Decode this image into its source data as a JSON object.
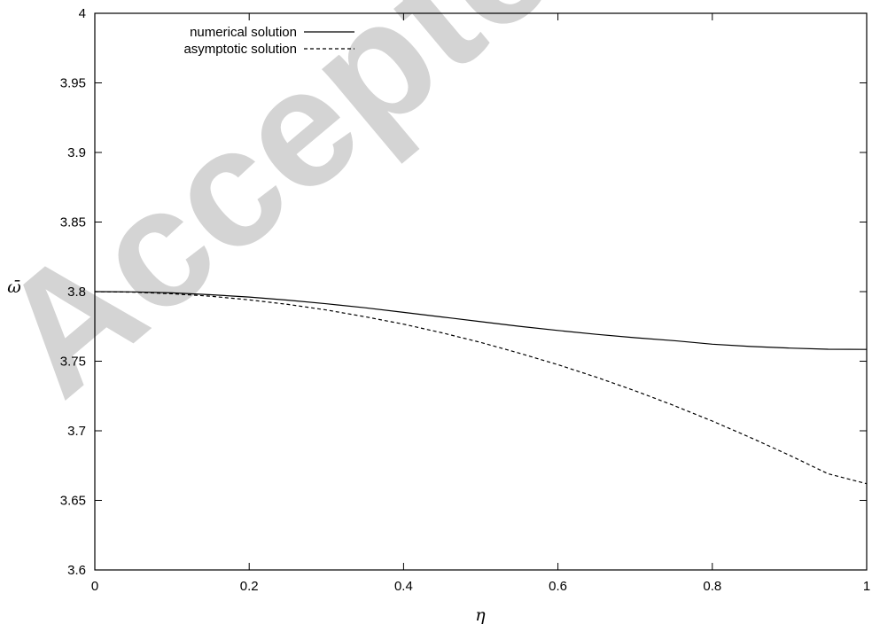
{
  "watermark": "Accepted M",
  "chart_data": {
    "type": "line",
    "xlabel": "η",
    "ylabel": "ω̄",
    "xlim": [
      0,
      1
    ],
    "ylim": [
      3.6,
      4
    ],
    "x_ticks": [
      "0",
      "0.2",
      "0.4",
      "0.6",
      "0.8",
      "1"
    ],
    "y_ticks": [
      "3.6",
      "3.65",
      "3.7",
      "3.75",
      "3.8",
      "3.85",
      "3.9",
      "3.95",
      "4"
    ],
    "legend_position": "top-left",
    "grid": false,
    "series": [
      {
        "name": "numerical solution",
        "style": "solid",
        "color": "#000000",
        "x": [
          0,
          0.05,
          0.1,
          0.15,
          0.2,
          0.25,
          0.3,
          0.35,
          0.4,
          0.45,
          0.5,
          0.55,
          0.6,
          0.65,
          0.7,
          0.75,
          0.8,
          0.85,
          0.9,
          0.95,
          1
        ],
        "y": [
          3.8,
          3.7998,
          3.7991,
          3.7978,
          3.7961,
          3.7939,
          3.7913,
          3.7884,
          3.7851,
          3.7818,
          3.7784,
          3.7751,
          3.7721,
          3.7693,
          3.7669,
          3.7648,
          3.7622,
          3.7606,
          3.7594,
          3.7586,
          3.7585
        ]
      },
      {
        "name": "asymptotic solution",
        "style": "dashed",
        "color": "#000000",
        "x": [
          0,
          0.05,
          0.1,
          0.15,
          0.2,
          0.25,
          0.3,
          0.35,
          0.4,
          0.45,
          0.5,
          0.55,
          0.6,
          0.65,
          0.7,
          0.75,
          0.8,
          0.85,
          0.9,
          0.95,
          1
        ],
        "y": [
          3.8,
          3.7996,
          3.7985,
          3.7967,
          3.7941,
          3.7908,
          3.7868,
          3.782,
          3.7766,
          3.7704,
          3.7635,
          3.7558,
          3.7475,
          3.7385,
          3.7287,
          3.7182,
          3.707,
          3.695,
          3.6824,
          3.6691,
          3.662
        ]
      }
    ]
  }
}
